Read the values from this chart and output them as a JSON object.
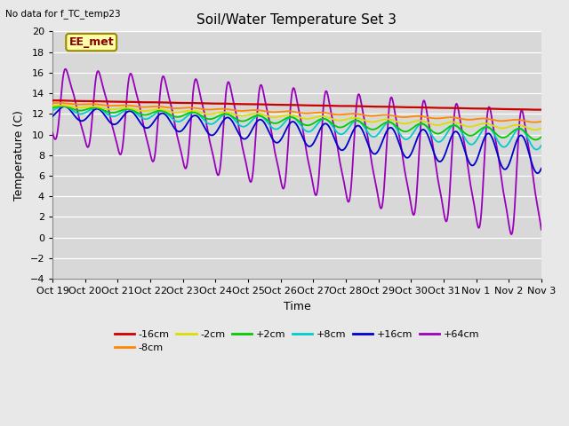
{
  "title": "Soil/Water Temperature Set 3",
  "xlabel": "Time",
  "ylabel": "Temperature (C)",
  "top_label": "No data for f_TC_temp23",
  "legend_label": "EE_met",
  "ylim": [
    -4,
    20
  ],
  "xlim_days": 15,
  "x_tick_labels": [
    "Oct 19",
    "Oct 20",
    "Oct 21",
    "Oct 22",
    "Oct 23",
    "Oct 24",
    "Oct 25",
    "Oct 26",
    "Oct 27",
    "Oct 28",
    "Oct 29",
    "Oct 30",
    "Oct 31",
    "Nov 1",
    "Nov 2",
    "Nov 3"
  ],
  "colors": {
    "-16cm": "#cc0000",
    "-8cm": "#ff8800",
    "-2cm": "#dddd00",
    "+2cm": "#00cc00",
    "+8cm": "#00cccc",
    "+16cm": "#0000cc",
    "+64cm": "#9900bb"
  },
  "bg_color": "#e8e8e8",
  "plot_bg_color": "#d8d8d8",
  "grid_color": "#ffffff",
  "lw": 1.3
}
